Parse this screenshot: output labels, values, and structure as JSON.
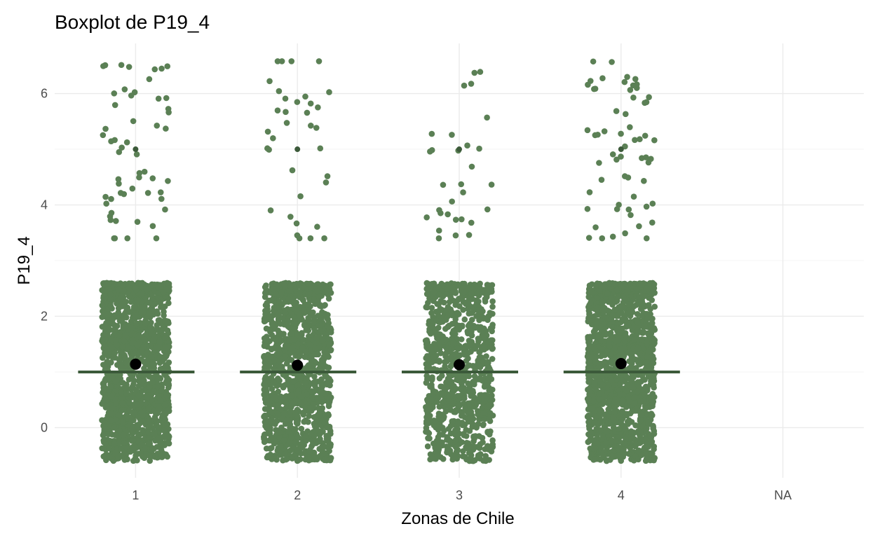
{
  "chart_data": {
    "type": "scatter",
    "subtype": "jittered boxplot",
    "title": "Boxplot de P19_4",
    "xlabel": "Zonas de Chile",
    "ylabel": "P19_4",
    "categories": [
      "1",
      "2",
      "3",
      "4",
      "NA"
    ],
    "ylim": [
      -0.9,
      6.9
    ],
    "yticks": [
      0,
      2,
      4,
      6
    ],
    "grid": true,
    "legend": "none",
    "colors": {
      "points": "#5b8055",
      "median": "#3c5a3a",
      "mean": "#000000",
      "outlier": "#3c5a3a"
    },
    "groups": [
      {
        "category": "1",
        "median": 1.0,
        "mean": 1.14,
        "outliers_overlap": [
          5.0
        ],
        "dense_range": [
          -0.6,
          2.6
        ],
        "dense_count": 1600,
        "outlier_count": 55
      },
      {
        "category": "2",
        "median": 1.0,
        "mean": 1.12,
        "outliers_overlap": [
          5.0
        ],
        "dense_range": [
          -0.6,
          2.6
        ],
        "dense_count": 1300,
        "outlier_count": 35
      },
      {
        "category": "3",
        "median": 1.0,
        "mean": 1.13,
        "outliers_overlap": [
          5.0
        ],
        "dense_range": [
          -0.6,
          2.6
        ],
        "dense_count": 900,
        "outlier_count": 30
      },
      {
        "category": "4",
        "median": 1.0,
        "mean": 1.15,
        "outliers_overlap": [
          5.0
        ],
        "dense_range": [
          -0.6,
          2.6
        ],
        "dense_count": 1500,
        "outlier_count": 60
      }
    ]
  }
}
